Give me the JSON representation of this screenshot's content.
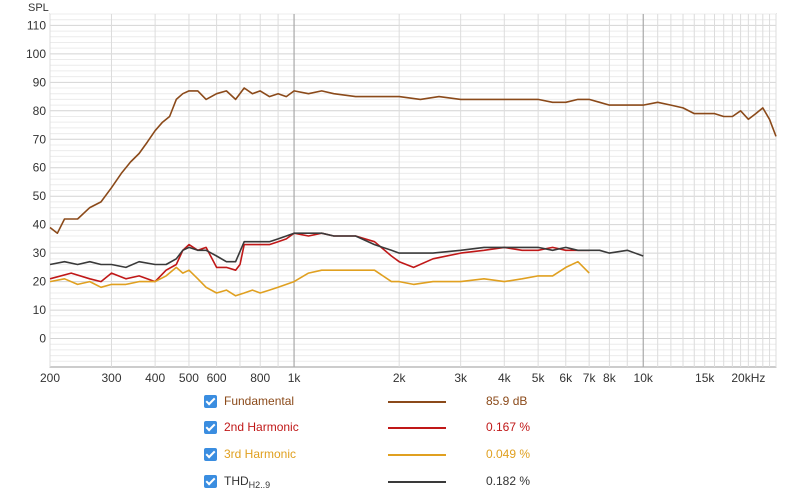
{
  "chart_data": {
    "type": "line",
    "ylabel": "SPL",
    "xscale": "log",
    "xlim": [
      200,
      24000
    ],
    "ylim": [
      -10,
      114
    ],
    "y_ticks": [
      0,
      10,
      20,
      30,
      40,
      50,
      60,
      70,
      80,
      90,
      100,
      110
    ],
    "y_tick_labels": [
      "0",
      "10",
      "20",
      "30",
      "40",
      "50",
      "60",
      "70",
      "80",
      "90",
      "100",
      "110"
    ],
    "x_tick_labels": [
      {
        "f": 200,
        "label": "200"
      },
      {
        "f": 300,
        "label": "300"
      },
      {
        "f": 400,
        "label": "400"
      },
      {
        "f": 500,
        "label": "500"
      },
      {
        "f": 600,
        "label": "600"
      },
      {
        "f": 800,
        "label": "800"
      },
      {
        "f": 1000,
        "label": "1k"
      },
      {
        "f": 2000,
        "label": "2k"
      },
      {
        "f": 3000,
        "label": "3k"
      },
      {
        "f": 4000,
        "label": "4k"
      },
      {
        "f": 5000,
        "label": "5k"
      },
      {
        "f": 6000,
        "label": "6k"
      },
      {
        "f": 7000,
        "label": "7k"
      },
      {
        "f": 8000,
        "label": "8k"
      },
      {
        "f": 10000,
        "label": "10k"
      },
      {
        "f": 15000,
        "label": "15k"
      },
      {
        "f": 20000,
        "label": "20kHz"
      }
    ],
    "grid": true,
    "series": [
      {
        "name": "Fundamental",
        "color": "#8b4a1a",
        "value_label": "85.9 dB",
        "x": [
          200,
          210,
          220,
          240,
          260,
          280,
          300,
          320,
          340,
          360,
          380,
          400,
          420,
          440,
          460,
          480,
          500,
          530,
          560,
          600,
          640,
          680,
          720,
          760,
          800,
          850,
          900,
          950,
          1000,
          1100,
          1200,
          1300,
          1500,
          1700,
          2000,
          2300,
          2600,
          3000,
          3500,
          4000,
          4500,
          5000,
          5500,
          6000,
          6500,
          7000,
          7500,
          8000,
          9000,
          10000,
          11000,
          12000,
          13000,
          14000,
          15000,
          16000,
          17000,
          18000,
          19000,
          20000,
          21000,
          22000,
          23000,
          24000
        ],
        "y": [
          39,
          37,
          42,
          42,
          46,
          48,
          53,
          58,
          62,
          65,
          69,
          73,
          76,
          78,
          84,
          86,
          87,
          87,
          84,
          86,
          87,
          84,
          88,
          86,
          87,
          85,
          86,
          85,
          87,
          86,
          87,
          86,
          85,
          85,
          85,
          84,
          85,
          84,
          84,
          84,
          84,
          84,
          83,
          83,
          84,
          84,
          83,
          82,
          82,
          82,
          83,
          82,
          81,
          79,
          79,
          79,
          78,
          78,
          80,
          77,
          79,
          81,
          77,
          71
        ]
      },
      {
        "name": "2nd Harmonic",
        "color": "#c01818",
        "value_label": "0.167 %",
        "x": [
          200,
          230,
          260,
          280,
          300,
          330,
          360,
          400,
          430,
          460,
          480,
          500,
          530,
          560,
          600,
          640,
          680,
          700,
          720,
          760,
          800,
          850,
          900,
          950,
          1000,
          1100,
          1200,
          1300,
          1500,
          1700,
          1900,
          2000,
          2200,
          2500,
          3000,
          3500,
          4000,
          4500,
          5000,
          5500,
          6000,
          6500,
          7000
        ],
        "y": [
          21,
          23,
          21,
          20,
          23,
          21,
          22,
          20,
          24,
          26,
          31,
          33,
          31,
          32,
          25,
          25,
          24,
          26,
          33,
          33,
          33,
          33,
          34,
          35,
          37,
          36,
          37,
          36,
          36,
          34,
          29,
          27,
          25,
          28,
          30,
          31,
          32,
          31,
          31,
          32,
          31,
          31,
          31
        ]
      },
      {
        "name": "3rd Harmonic",
        "color": "#e0a020",
        "value_label": "0.049 %",
        "x": [
          200,
          220,
          240,
          260,
          280,
          300,
          330,
          360,
          400,
          430,
          460,
          480,
          500,
          530,
          560,
          600,
          640,
          680,
          720,
          760,
          800,
          850,
          900,
          950,
          1000,
          1100,
          1200,
          1300,
          1500,
          1700,
          1900,
          2000,
          2200,
          2500,
          3000,
          3500,
          4000,
          4500,
          5000,
          5500,
          6000,
          6500,
          7000
        ],
        "y": [
          20,
          21,
          19,
          20,
          18,
          19,
          19,
          20,
          20,
          22,
          25,
          23,
          24,
          21,
          18,
          16,
          17,
          15,
          16,
          17,
          16,
          17,
          18,
          19,
          20,
          23,
          24,
          24,
          24,
          24,
          20,
          20,
          19,
          20,
          20,
          21,
          20,
          21,
          22,
          22,
          25,
          27,
          23
        ]
      },
      {
        "name": "THD",
        "name_sub": "H2..9",
        "color": "#3a3a3a",
        "value_label": "0.182 %",
        "x": [
          200,
          220,
          240,
          260,
          280,
          300,
          330,
          360,
          400,
          430,
          460,
          480,
          500,
          530,
          560,
          600,
          640,
          680,
          720,
          760,
          800,
          850,
          900,
          950,
          1000,
          1100,
          1200,
          1300,
          1500,
          1700,
          1900,
          2000,
          2200,
          2500,
          3000,
          3500,
          4000,
          4500,
          5000,
          5500,
          6000,
          6500,
          7000,
          7500,
          8000,
          9000,
          10000
        ],
        "y": [
          26,
          27,
          26,
          27,
          26,
          26,
          25,
          27,
          26,
          26,
          28,
          31,
          32,
          31,
          31,
          29,
          27,
          27,
          34,
          34,
          34,
          34,
          35,
          36,
          37,
          37,
          37,
          36,
          36,
          33,
          31,
          30,
          30,
          30,
          31,
          32,
          32,
          32,
          32,
          31,
          32,
          31,
          31,
          31,
          30,
          31,
          29
        ]
      }
    ]
  }
}
